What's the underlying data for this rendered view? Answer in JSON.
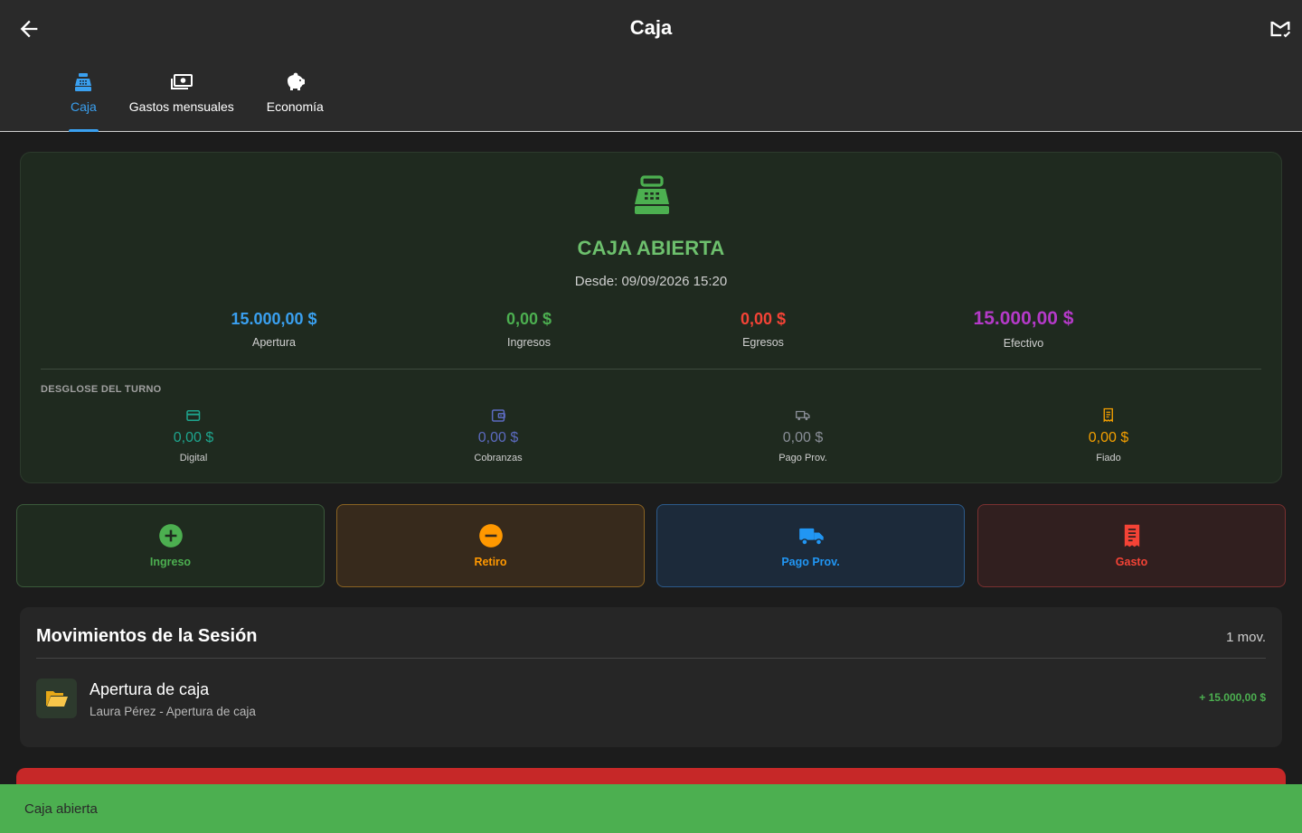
{
  "appbar": {
    "title": "Caja"
  },
  "tabs": [
    {
      "label": "Caja",
      "icon": "cash-register-icon",
      "active": true
    },
    {
      "label": "Gastos mensuales",
      "icon": "money-bill-icon",
      "active": false
    },
    {
      "label": "Economía",
      "icon": "piggy-bank-icon",
      "active": false
    }
  ],
  "status": {
    "title": "CAJA ABIERTA",
    "since": "Desde: 09/09/2026 15:20",
    "summary": [
      {
        "value": "15.000,00 $",
        "label": "Apertura",
        "color": "#3aa0f0"
      },
      {
        "value": "0,00 $",
        "label": "Ingresos",
        "color": "#4caf50"
      },
      {
        "value": "0,00 $",
        "label": "Egresos",
        "color": "#f44336"
      },
      {
        "value": "15.000,00 $",
        "label": "Efectivo",
        "color": "#b43ac8"
      }
    ],
    "breakdown_title": "DESGLOSE DEL TURNO",
    "breakdown": [
      {
        "value": "0,00 $",
        "label": "Digital",
        "icon": "credit-card-icon",
        "color": "#1ea58e"
      },
      {
        "value": "0,00 $",
        "label": "Cobranzas",
        "icon": "wallet-icon",
        "color": "#5c6bc0"
      },
      {
        "value": "0,00 $",
        "label": "Pago Prov.",
        "icon": "truck-icon",
        "color": "#8a8f98"
      },
      {
        "value": "0,00 $",
        "label": "Fiado",
        "icon": "receipt-icon",
        "color": "#f5a000"
      }
    ]
  },
  "actions": [
    {
      "label": "Ingreso",
      "icon": "plus-circle-icon",
      "color": "#4caf50"
    },
    {
      "label": "Retiro",
      "icon": "minus-circle-icon",
      "color": "#ff9800"
    },
    {
      "label": "Pago Prov.",
      "icon": "truck-icon",
      "color": "#2196f3"
    },
    {
      "label": "Gasto",
      "icon": "receipt-icon",
      "color": "#f44336"
    }
  ],
  "movements": {
    "title": "Movimientos de la Sesión",
    "count": "1 mov.",
    "items": [
      {
        "icon": "folder-open-icon",
        "title": "Apertura de caja",
        "subtitle": "Laura Pérez - Apertura de caja",
        "amount": "+ 15.000,00 $"
      }
    ]
  },
  "snackbar": {
    "text": "Caja abierta"
  }
}
